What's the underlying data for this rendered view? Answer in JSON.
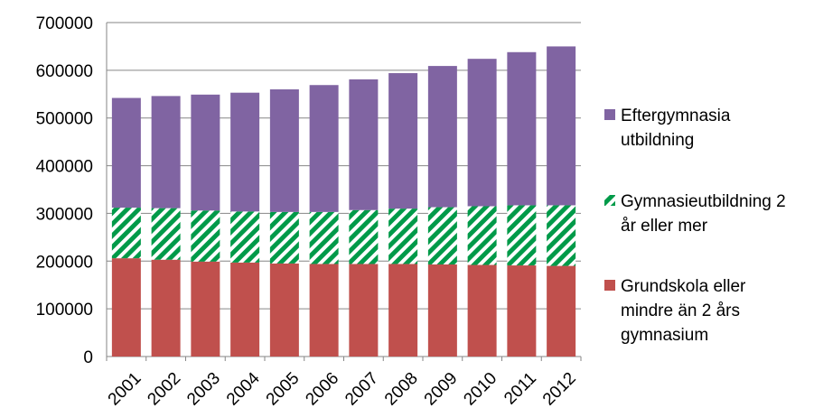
{
  "chart_data": {
    "type": "bar",
    "stacked": true,
    "categories": [
      "2001",
      "2002",
      "2003",
      "2004",
      "2005",
      "2006",
      "2007",
      "2008",
      "2009",
      "2010",
      "2011",
      "2012"
    ],
    "series": [
      {
        "name": "Grundskola eller mindre än 2 års gymnasium",
        "legend_lines": [
          "Grundskola eller",
          "mindre än 2 års",
          "gymnasium"
        ],
        "color": "#c0504d",
        "pattern": "solid",
        "values": [
          206000,
          203000,
          199000,
          197000,
          195000,
          194000,
          194000,
          194000,
          193000,
          192000,
          191000,
          190000
        ]
      },
      {
        "name": "Gymnasieutbildning 2 år eller mer",
        "legend_lines": [
          "Gymnasieutbildning 2",
          "år eller mer"
        ],
        "color": "#009a49",
        "pattern": "diagonal-stripes",
        "values": [
          106000,
          108000,
          107000,
          107000,
          108000,
          109000,
          113000,
          116000,
          120000,
          123000,
          126000,
          127000
        ]
      },
      {
        "name": "Eftergymnasia utbildning",
        "legend_lines": [
          "Eftergymnasia",
          "utbildning"
        ],
        "color": "#8064a2",
        "pattern": "solid",
        "values": [
          230000,
          235000,
          243000,
          249000,
          257000,
          266000,
          274000,
          284000,
          296000,
          309000,
          321000,
          333000
        ]
      }
    ],
    "yticks": [
      "0",
      "100000",
      "200000",
      "300000",
      "400000",
      "500000",
      "600000",
      "700000"
    ],
    "ylim": [
      0,
      700000
    ],
    "grid": true,
    "legend_position": "right",
    "legend_order": [
      2,
      1,
      0
    ]
  }
}
